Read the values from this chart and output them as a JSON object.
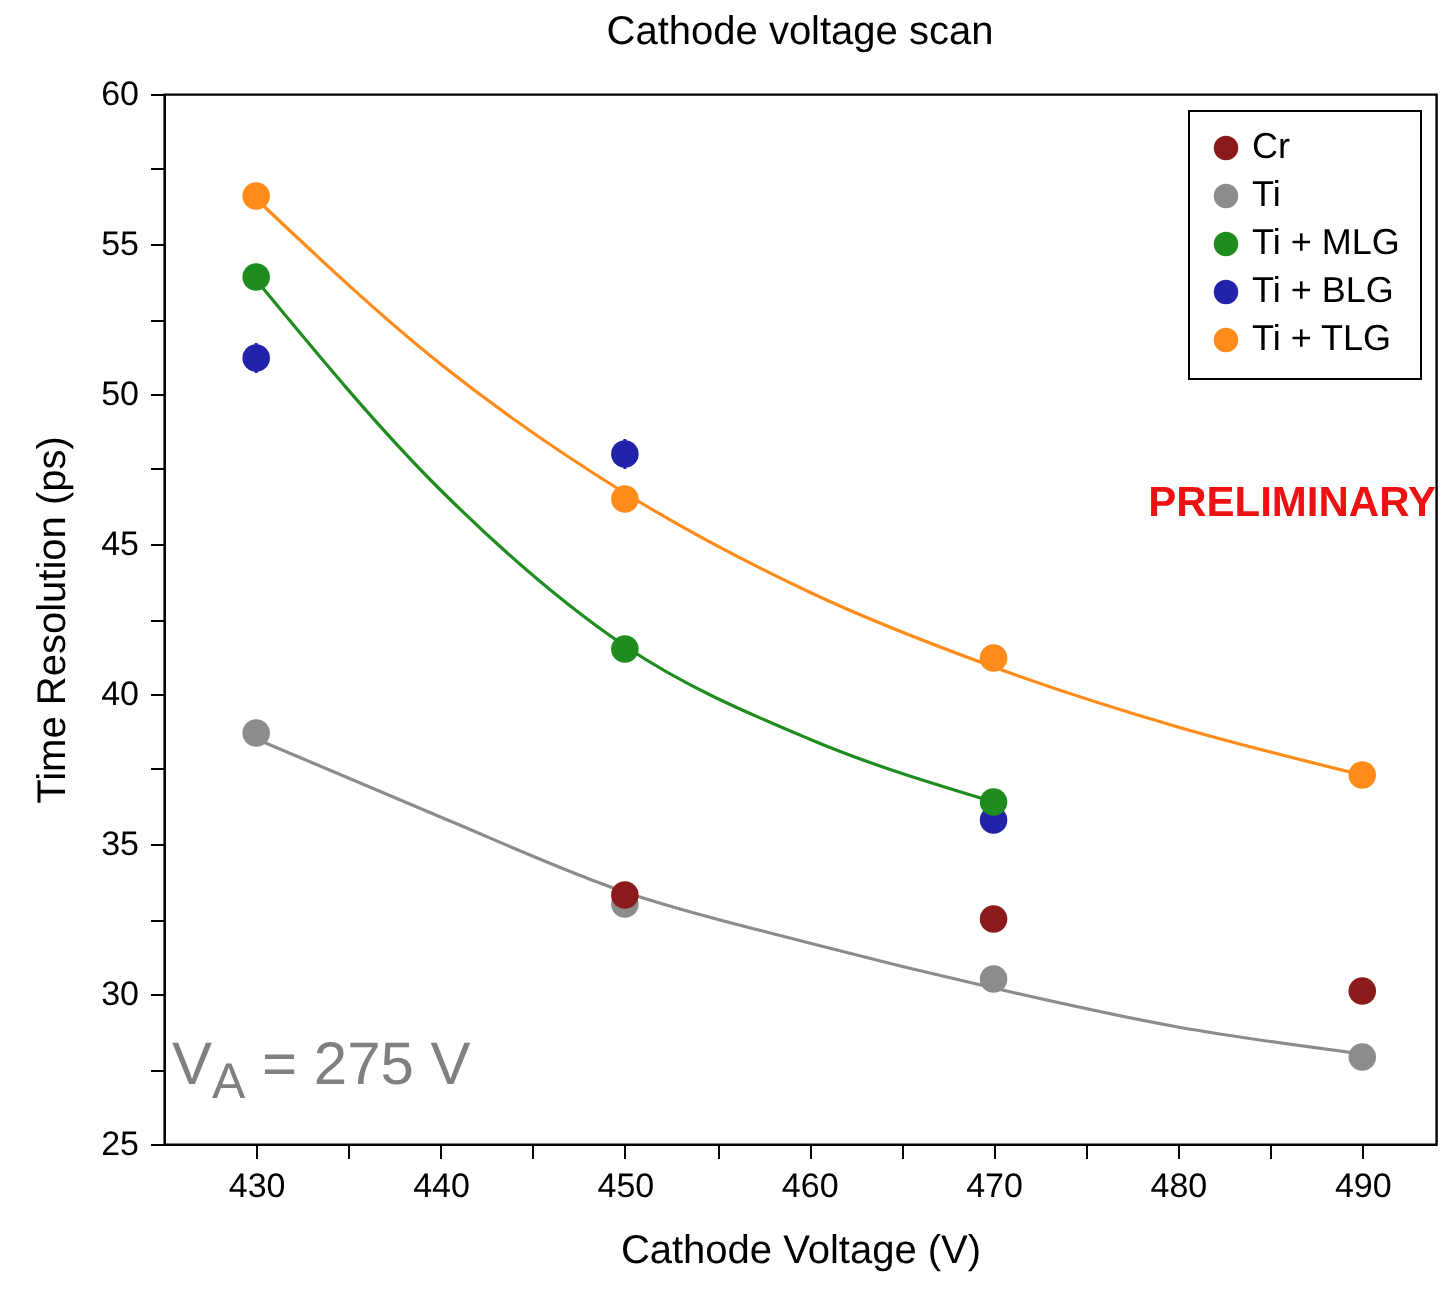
{
  "chart_data": {
    "type": "scatter",
    "title": "Cathode voltage scan",
    "xlabel": "Cathode Voltage (V)",
    "ylabel": "Time Resolution (ps)",
    "annotations": [
      "PRELIMINARY",
      "V$_{A}$ = 275 V"
    ],
    "x": [
      430,
      450,
      470,
      490
    ],
    "series": [
      {
        "name": "Cr",
        "color": "#8b1a1a",
        "values": [
          null,
          33.3,
          32.5,
          30.1
        ]
      },
      {
        "name": "Ti",
        "color": "#8c8c8c",
        "values": [
          38.7,
          33.0,
          30.5,
          27.9
        ]
      },
      {
        "name": "Ti + MLG",
        "color": "#1f8c1f",
        "values": [
          53.9,
          41.5,
          36.4,
          null
        ]
      },
      {
        "name": "Ti + BLG",
        "color": "#2222aa",
        "values": [
          51.2,
          48.0,
          35.8,
          null
        ],
        "errors": [
          0.5,
          0.5,
          null,
          null
        ]
      },
      {
        "name": "Ti + TLG",
        "color": "#ff8c1a",
        "values": [
          56.6,
          46.5,
          41.2,
          37.3
        ]
      },
      {
        "type": "line",
        "marker": "none",
        "color": "#8c8c8c",
        "x": [
          430,
          440,
          450,
          460,
          470,
          480,
          490
        ],
        "values": [
          38.5,
          35.9,
          33.4,
          31.7,
          30.2,
          28.9,
          28.0
        ]
      },
      {
        "type": "line",
        "marker": "none",
        "color": "#1f8c1f",
        "x": [
          430,
          440,
          450,
          460,
          470
        ],
        "values": [
          53.8,
          46.8,
          41.6,
          38.5,
          36.4
        ]
      },
      {
        "type": "line",
        "marker": "none",
        "color": "#ff8c1a",
        "x": [
          430,
          440,
          450,
          460,
          470,
          480,
          490
        ],
        "values": [
          56.5,
          51.0,
          46.7,
          43.4,
          40.9,
          38.9,
          37.3
        ]
      }
    ],
    "xlim": [
      425,
      494
    ],
    "xticks": [
      430,
      {
        "value": 435,
        "label": null
      },
      440,
      {
        "value": 445,
        "label": null
      },
      450,
      {
        "value": 455,
        "label": null
      },
      460,
      {
        "value": 465,
        "label": null
      },
      470,
      {
        "value": 475,
        "label": null
      },
      480,
      {
        "value": 485,
        "label": null
      },
      490
    ],
    "ylim": [
      25,
      60
    ],
    "yticks": [
      25,
      {
        "value": 27.5,
        "label": null
      },
      30,
      {
        "value": 32.5,
        "label": null
      },
      35,
      {
        "value": 37.5,
        "label": null
      },
      40,
      {
        "value": 42.5,
        "label": null
      },
      45,
      {
        "value": 47.5,
        "label": null
      },
      50,
      {
        "value": 52.5,
        "label": null
      },
      55,
      {
        "value": 57.5,
        "label": null
      },
      60
    ],
    "legend": "top right",
    "marker": "circle",
    "line_style": "solid",
    "grid": false
  }
}
